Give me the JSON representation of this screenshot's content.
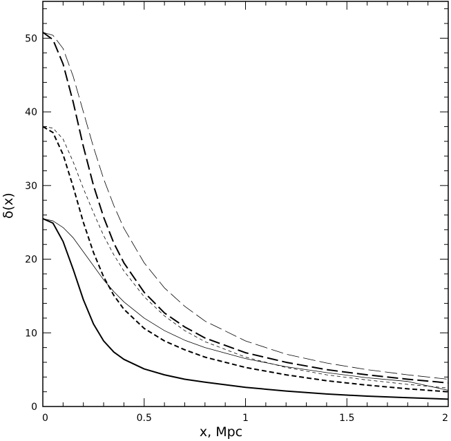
{
  "chart_data": {
    "type": "line",
    "title": "",
    "xlabel": "x, Mpc",
    "ylabel": "δ(x)",
    "xlim": [
      0,
      2
    ],
    "ylim": [
      0,
      55
    ],
    "grid": false,
    "legend": "none",
    "x_ticks": [
      0,
      0.5,
      1,
      1.5,
      2
    ],
    "x_tick_labels": [
      "0",
      "0.5",
      "1",
      "1.5",
      "2"
    ],
    "y_ticks": [
      0,
      10,
      20,
      30,
      40,
      50
    ],
    "y_tick_labels": [
      "0",
      "10",
      "20",
      "30",
      "40",
      "50"
    ],
    "series": [
      {
        "style": "solid-thick",
        "x": [
          0,
          0.05,
          0.1,
          0.15,
          0.2,
          0.25,
          0.3,
          0.35,
          0.4,
          0.5,
          0.6,
          0.7,
          0.8,
          1.0,
          1.2,
          1.4,
          1.6,
          1.8,
          2.0
        ],
        "y": [
          25.5,
          24.9,
          22.4,
          18.6,
          14.5,
          11.2,
          8.9,
          7.4,
          6.4,
          5.1,
          4.3,
          3.7,
          3.3,
          2.6,
          2.1,
          1.7,
          1.4,
          1.2,
          1.0
        ]
      },
      {
        "style": "solid-thin",
        "x": [
          0,
          0.05,
          0.1,
          0.15,
          0.2,
          0.25,
          0.3,
          0.35,
          0.4,
          0.5,
          0.6,
          0.7,
          0.8,
          1.0,
          1.2,
          1.4,
          1.6,
          1.8,
          2.0
        ],
        "y": [
          25.5,
          25.2,
          24.3,
          22.9,
          21.0,
          19.1,
          17.2,
          15.6,
          14.2,
          12.0,
          10.3,
          9.0,
          8.0,
          6.5,
          5.4,
          4.6,
          3.9,
          3.4,
          2.2
        ]
      },
      {
        "style": "short-dash-thick",
        "x": [
          0,
          0.05,
          0.1,
          0.15,
          0.2,
          0.25,
          0.3,
          0.35,
          0.4,
          0.5,
          0.6,
          0.7,
          0.8,
          1.0,
          1.2,
          1.4,
          1.6,
          1.8,
          2.0
        ],
        "y": [
          38.0,
          37.2,
          34.2,
          29.8,
          25.0,
          20.9,
          17.6,
          15.1,
          13.2,
          10.6,
          8.9,
          7.7,
          6.7,
          5.3,
          4.3,
          3.5,
          2.9,
          2.4,
          2.0
        ]
      },
      {
        "style": "short-dash-thin",
        "x": [
          0,
          0.05,
          0.1,
          0.15,
          0.2,
          0.25,
          0.3,
          0.35,
          0.4,
          0.5,
          0.6,
          0.7,
          0.8,
          1.0,
          1.2,
          1.4,
          1.6,
          1.8,
          2.0
        ],
        "y": [
          38.0,
          37.8,
          36.3,
          33.2,
          29.6,
          26.3,
          23.2,
          20.6,
          18.4,
          14.9,
          12.3,
          10.3,
          8.8,
          6.7,
          5.3,
          4.3,
          3.6,
          3.0,
          2.5
        ]
      },
      {
        "style": "long-dash-thick",
        "x": [
          0,
          0.05,
          0.1,
          0.15,
          0.2,
          0.25,
          0.3,
          0.35,
          0.4,
          0.5,
          0.6,
          0.7,
          0.8,
          1.0,
          1.2,
          1.4,
          1.6,
          1.8,
          2.0
        ],
        "y": [
          50.8,
          49.8,
          46.5,
          41.3,
          35.3,
          30.0,
          25.7,
          22.2,
          19.5,
          15.5,
          12.7,
          10.8,
          9.3,
          7.3,
          6.0,
          5.0,
          4.3,
          3.7,
          3.2
        ]
      },
      {
        "style": "long-dash-thin",
        "x": [
          0,
          0.05,
          0.1,
          0.15,
          0.2,
          0.25,
          0.3,
          0.35,
          0.4,
          0.5,
          0.6,
          0.7,
          0.8,
          1.0,
          1.2,
          1.4,
          1.6,
          1.8,
          2.0
        ],
        "y": [
          50.8,
          50.4,
          48.6,
          44.8,
          40.0,
          35.2,
          30.9,
          27.3,
          24.2,
          19.5,
          16.1,
          13.6,
          11.6,
          8.9,
          7.1,
          5.9,
          5.0,
          4.3,
          3.7
        ]
      }
    ]
  }
}
